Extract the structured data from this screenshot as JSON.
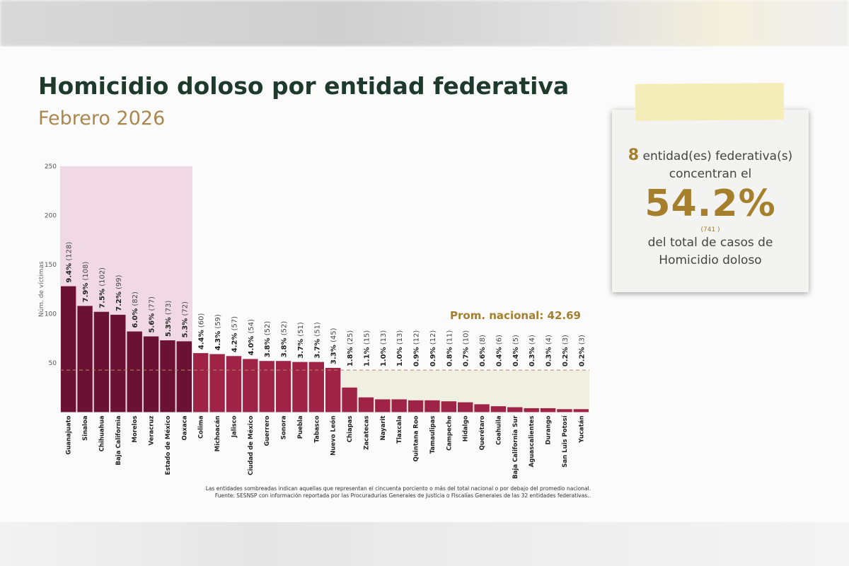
{
  "header": {
    "title": "Homicidio doloso por entidad federativa",
    "subtitle": "Febrero 2026"
  },
  "card": {
    "count": "8",
    "count_text": " entidad(es) federativa(s)",
    "line2": "concentran el",
    "percent": "54.2%",
    "cases": "(741 )",
    "line3": "del total de casos de",
    "line4": "Homicidio doloso"
  },
  "footnote": {
    "line1": "Las entidades sombreadas indican aquellas que representan el cincuenta porciento o más del total nacional o por debajo del promedio nacional.",
    "line2": "Fuente: SESNSP con información reportada por las Procuradurías Generales de Justicia o Fiscalías Generales de las 32 entidades federativas.."
  },
  "colors": {
    "top_bars": "#6b1233",
    "other_bars": "#9f2346",
    "top_shade": "#f0d9e5",
    "low_shade": "#efefe2",
    "accent": "#a57f2c",
    "title": "#1d3a2c"
  },
  "chart_data": {
    "type": "bar",
    "ylabel": "Núm. de víctimas",
    "ylim": [
      0,
      250
    ],
    "yticks": [
      50,
      100,
      150,
      200,
      250
    ],
    "average_label": "Prom. nacional: 42.69",
    "average": 42.69,
    "categories": [
      "Guanajuato",
      "Sinaloa",
      "Chihuahua",
      "Baja California",
      "Morelos",
      "Veracruz",
      "Estado de México",
      "Oaxaca",
      "Colima",
      "Michoacán",
      "Jalisco",
      "Ciudad de México",
      "Guerrero",
      "Sonora",
      "Puebla",
      "Tabasco",
      "Nuevo León",
      "Chiapas",
      "Zacatecas",
      "Nayarit",
      "Tlaxcala",
      "Quintana Roo",
      "Tamaulipas",
      "Campeche",
      "Hidalgo",
      "Querétaro",
      "Coahuila",
      "Baja California Sur",
      "Aguascalientes",
      "Durango",
      "San Luis Potosí",
      "Yucatán"
    ],
    "values": [
      128,
      108,
      102,
      99,
      82,
      77,
      73,
      72,
      60,
      59,
      57,
      54,
      52,
      52,
      51,
      51,
      45,
      25,
      15,
      13,
      13,
      12,
      12,
      11,
      10,
      8,
      6,
      5,
      4,
      4,
      3,
      3
    ],
    "percent_labels": [
      "9.4%",
      "7.9%",
      "7.5%",
      "7.2%",
      "6.0%",
      "5.6%",
      "5.3%",
      "5.3%",
      "4.4%",
      "4.3%",
      "4.2%",
      "4.0%",
      "3.8%",
      "3.8%",
      "3.7%",
      "3.7%",
      "3.3%",
      "1.8%",
      "1.1%",
      "1.0%",
      "1.0%",
      "0.9%",
      "0.9%",
      "0.8%",
      "0.7%",
      "0.6%",
      "0.4%",
      "0.4%",
      "0.3%",
      "0.3%",
      "0.2%",
      "0.2%"
    ],
    "top_group_count": 8,
    "grid": false
  }
}
